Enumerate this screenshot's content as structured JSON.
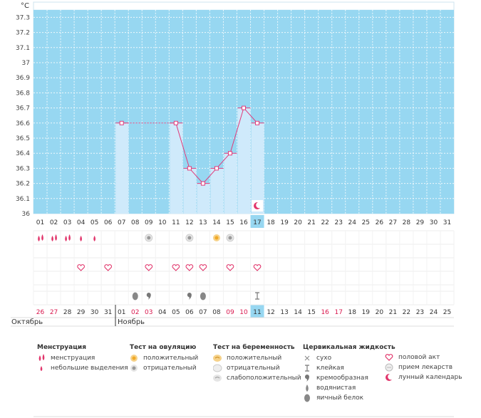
{
  "chart_data": {
    "type": "bar",
    "unit": "°C",
    "ylim": [
      36.0,
      37.4
    ],
    "y_ticks": [
      "37.3",
      "37.2",
      "37.1",
      "37",
      "36.9",
      "36.8",
      "36.7",
      "36.6",
      "36.5",
      "36.4",
      "36.3",
      "36.2",
      "36.1",
      "36"
    ],
    "x_days": [
      "01",
      "02",
      "03",
      "04",
      "05",
      "06",
      "07",
      "08",
      "09",
      "10",
      "11",
      "12",
      "13",
      "14",
      "15",
      "16",
      "17",
      "18",
      "19",
      "20",
      "21",
      "22",
      "23",
      "24",
      "25",
      "26",
      "27",
      "28",
      "29",
      "30",
      "31"
    ],
    "cycle_dates": [
      "26",
      "27",
      "28",
      "29",
      "30",
      "31",
      "01",
      "02",
      "03",
      "04",
      "05",
      "06",
      "07",
      "08",
      "09",
      "10",
      "11",
      "12",
      "13",
      "14",
      "15",
      "16",
      "17",
      "18",
      "19",
      "20",
      "21",
      "22",
      "23",
      "24",
      "25"
    ],
    "weekend_dates": [
      0,
      1,
      7,
      8,
      14,
      15,
      21,
      22
    ],
    "today_index": 16,
    "temperatures": [
      null,
      null,
      null,
      null,
      null,
      null,
      36.6,
      null,
      null,
      null,
      36.6,
      36.3,
      36.2,
      36.3,
      36.4,
      36.7,
      36.6,
      null,
      null,
      null,
      null,
      null,
      null,
      null,
      null,
      null,
      null,
      null,
      null,
      null,
      null
    ],
    "menstruation_rows": {
      "menstruation": [
        0,
        1,
        2
      ],
      "spotting": [
        3,
        4
      ]
    },
    "ovulation_test": {
      "negative": [
        8,
        11,
        14
      ],
      "positive": [
        13
      ]
    },
    "intercourse": [
      3,
      5,
      8,
      10,
      11,
      12,
      14,
      16
    ],
    "cervical_fluid": {
      "egg_white": [
        7,
        12
      ],
      "creamy": [
        8,
        11
      ],
      "sticky": [
        16
      ]
    },
    "moon_index": 16,
    "colors": {
      "sky": "#97d7f1",
      "bar": "#cfeafb",
      "line": "#e13a7a",
      "today": "#97d7f1",
      "pink": "#e1356b"
    }
  },
  "months": {
    "first": "Октябрь",
    "second": "Ноябрь"
  },
  "legend": {
    "menstruation": {
      "title": "Менструация",
      "items": [
        "менструация",
        "небольшие выделения"
      ]
    },
    "ovulation": {
      "title": "Тест на овуляцию",
      "items": [
        "положительный",
        "отрицательный"
      ]
    },
    "pregnancy": {
      "title": "Тест на беременность",
      "items": [
        "положительный",
        "отрицательный",
        "слабоположительный"
      ]
    },
    "cervical": {
      "title": "Цервикальная жидкость",
      "items": [
        "сухо",
        "клейкая",
        "кремообразная",
        "водянистая",
        "яичный белок"
      ]
    },
    "other": {
      "items": [
        "половой акт",
        "прием лекарств",
        "лунный календарь"
      ]
    }
  }
}
